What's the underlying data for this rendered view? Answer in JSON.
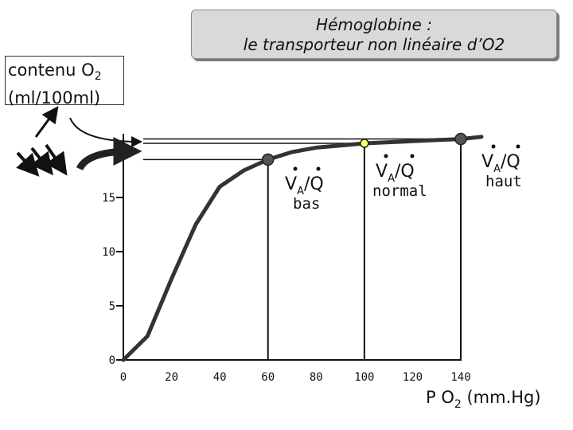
{
  "title": {
    "line1": "Hémoglobine :",
    "line2": "le transporteur non linéaire d’O2"
  },
  "ylabel": {
    "line1_text": "contenu O",
    "line1_sub": "2",
    "line2": "(ml/100ml)"
  },
  "xlabel": {
    "text": "P O",
    "sub": "2",
    "unit": " (mm.Hg)"
  },
  "ratio_labels": [
    {
      "name": "bas",
      "main": "V",
      "sub": "A",
      "rest": "/Q",
      "note": "bas"
    },
    {
      "name": "normal",
      "main": "V",
      "sub": "A",
      "rest": "/Q",
      "note": "normal"
    },
    {
      "name": "haut",
      "main": "V",
      "sub": "A",
      "rest": "/Q",
      "note": "haut"
    }
  ],
  "colors": {
    "curve": "#333333",
    "marker": "#555555",
    "marker_normal": "#ffff66",
    "axis": "#111111"
  },
  "chart_data": {
    "type": "line",
    "title": "Hémoglobine : le transporteur non linéaire d’O2",
    "xlabel": "P O2 (mm.Hg)",
    "ylabel": "contenu O2 (ml/100ml)",
    "xlim": [
      0,
      150
    ],
    "ylim": [
      0,
      21
    ],
    "xticks": [
      "0",
      "20",
      "40",
      "60",
      "80",
      "100",
      "120",
      "140"
    ],
    "yticks": [
      "0",
      "5",
      "10",
      "15"
    ],
    "series": [
      {
        "x": [
          0,
          10,
          20,
          30,
          40,
          50,
          60,
          70,
          80,
          90,
          100,
          110,
          120,
          130,
          140,
          150
        ],
        "y": [
          0,
          2.2,
          7.5,
          12.5,
          16.0,
          17.5,
          18.5,
          19.2,
          19.6,
          19.8,
          20.0,
          20.1,
          20.2,
          20.3,
          20.4,
          20.6
        ]
      }
    ],
    "markers": [
      {
        "x": 60,
        "y": 18.5,
        "label": "bas"
      },
      {
        "x": 100,
        "y": 20.0,
        "label": "normal"
      },
      {
        "x": 140,
        "y": 20.4,
        "label": "haut"
      }
    ],
    "grid": false
  }
}
